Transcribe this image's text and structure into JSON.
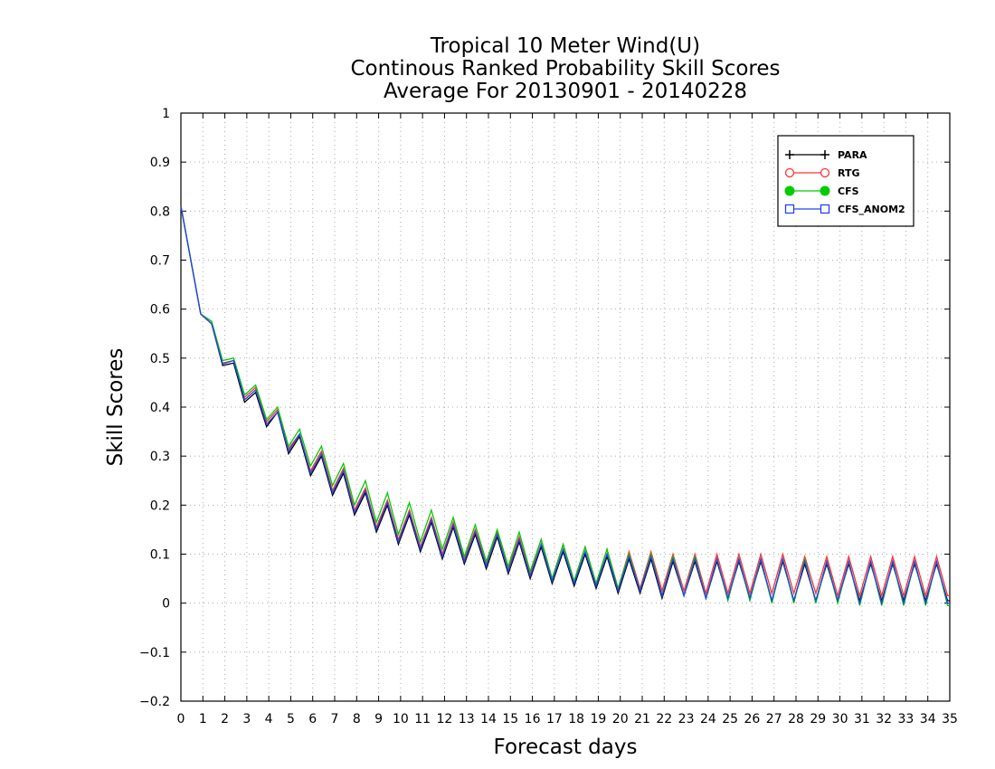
{
  "chart_data": {
    "type": "line",
    "title_lines": [
      "Tropical 10 Meter Wind(U)",
      "Continous Ranked Probability Skill Scores",
      "Average For 20130901 - 20140228"
    ],
    "xlabel": "Forecast days",
    "ylabel": "Skill Scores",
    "xlim": [
      0,
      35
    ],
    "ylim": [
      -0.2,
      1
    ],
    "x_ticks": [
      0,
      1,
      2,
      3,
      4,
      5,
      6,
      7,
      8,
      9,
      10,
      11,
      12,
      13,
      14,
      15,
      16,
      17,
      18,
      19,
      20,
      21,
      22,
      23,
      24,
      25,
      26,
      27,
      28,
      29,
      30,
      31,
      32,
      33,
      34,
      35
    ],
    "y_ticks": [
      -0.2,
      -0.1,
      0,
      0.1,
      0.2,
      0.3,
      0.4,
      0.5,
      0.6,
      0.7,
      0.8,
      0.9,
      1
    ],
    "grid": true,
    "legend_position": "top-right",
    "x": [
      0,
      0.9,
      1.4,
      1.9,
      2.4,
      2.9,
      3.4,
      3.9,
      4.4,
      4.9,
      5.4,
      5.9,
      6.4,
      6.9,
      7.4,
      7.9,
      8.4,
      8.9,
      9.4,
      9.9,
      10.4,
      10.9,
      11.4,
      11.9,
      12.4,
      12.9,
      13.4,
      13.9,
      14.4,
      14.9,
      15.4,
      15.9,
      16.4,
      16.9,
      17.4,
      17.9,
      18.4,
      18.9,
      19.4,
      19.9,
      20.4,
      20.9,
      21.4,
      21.9,
      22.4,
      22.9,
      23.4,
      23.9,
      24.4,
      24.9,
      25.4,
      25.9,
      26.4,
      26.9,
      27.4,
      27.9,
      28.4,
      28.9,
      29.4,
      29.9,
      30.4,
      30.9,
      31.4,
      31.9,
      32.4,
      32.9,
      33.4,
      33.9,
      34.4,
      34.9,
      35
    ],
    "series": [
      {
        "name": "PARA",
        "color": "#000000",
        "marker": "plus",
        "values": [
          0.81,
          0.59,
          0.57,
          0.485,
          0.49,
          0.41,
          0.43,
          0.36,
          0.39,
          0.305,
          0.34,
          0.26,
          0.3,
          0.22,
          0.265,
          0.18,
          0.225,
          0.145,
          0.2,
          0.12,
          0.18,
          0.105,
          0.165,
          0.09,
          0.155,
          0.08,
          0.14,
          0.07,
          0.135,
          0.06,
          0.125,
          0.05,
          0.115,
          0.04,
          0.105,
          0.035,
          0.1,
          0.03,
          0.095,
          0.02,
          0.09,
          0.02,
          0.09,
          0.01,
          0.085,
          0.015,
          0.085,
          0.01,
          0.085,
          0.01,
          0.085,
          0.01,
          0.085,
          0.005,
          0.085,
          0.005,
          0.08,
          0.005,
          0.08,
          0.005,
          0.08,
          0.005,
          0.08,
          0.005,
          0.08,
          0.005,
          0.08,
          0.005,
          0.08,
          0.005,
          0.005
        ]
      },
      {
        "name": "RTG",
        "color": "#ff3333",
        "marker": "open-circle",
        "values": [
          0.81,
          0.59,
          0.57,
          0.49,
          0.495,
          0.42,
          0.44,
          0.37,
          0.395,
          0.315,
          0.345,
          0.27,
          0.31,
          0.23,
          0.275,
          0.19,
          0.235,
          0.155,
          0.21,
          0.13,
          0.19,
          0.115,
          0.175,
          0.1,
          0.165,
          0.09,
          0.15,
          0.08,
          0.145,
          0.07,
          0.135,
          0.06,
          0.13,
          0.05,
          0.12,
          0.045,
          0.115,
          0.04,
          0.11,
          0.03,
          0.105,
          0.03,
          0.105,
          0.025,
          0.1,
          0.025,
          0.1,
          0.02,
          0.1,
          0.02,
          0.1,
          0.02,
          0.1,
          0.02,
          0.1,
          0.02,
          0.095,
          0.02,
          0.095,
          0.015,
          0.095,
          0.015,
          0.095,
          0.015,
          0.095,
          0.015,
          0.095,
          0.015,
          0.095,
          0.015,
          0.015
        ]
      },
      {
        "name": "CFS",
        "color": "#00cc00",
        "marker": "filled-circle",
        "values": [
          0.81,
          0.59,
          0.575,
          0.495,
          0.5,
          0.425,
          0.445,
          0.375,
          0.4,
          0.32,
          0.355,
          0.28,
          0.32,
          0.24,
          0.285,
          0.2,
          0.25,
          0.165,
          0.225,
          0.14,
          0.205,
          0.125,
          0.19,
          0.11,
          0.175,
          0.095,
          0.16,
          0.085,
          0.15,
          0.075,
          0.145,
          0.065,
          0.13,
          0.05,
          0.12,
          0.045,
          0.115,
          0.04,
          0.11,
          0.03,
          0.1,
          0.025,
          0.1,
          0.015,
          0.095,
          0.015,
          0.095,
          0.01,
          0.09,
          0.005,
          0.09,
          0.005,
          0.09,
          0.0,
          0.09,
          0.0,
          0.09,
          0.0,
          0.085,
          0.0,
          0.085,
          -0.005,
          0.085,
          -0.005,
          0.085,
          -0.005,
          0.085,
          -0.005,
          0.085,
          -0.005,
          -0.005
        ]
      },
      {
        "name": "CFS_ANOM2",
        "color": "#2244ee",
        "marker": "open-square",
        "values": [
          0.81,
          0.59,
          0.57,
          0.488,
          0.495,
          0.415,
          0.435,
          0.365,
          0.39,
          0.31,
          0.345,
          0.265,
          0.305,
          0.225,
          0.27,
          0.185,
          0.23,
          0.15,
          0.205,
          0.125,
          0.185,
          0.11,
          0.17,
          0.095,
          0.16,
          0.085,
          0.145,
          0.075,
          0.14,
          0.065,
          0.13,
          0.055,
          0.12,
          0.045,
          0.11,
          0.04,
          0.105,
          0.035,
          0.1,
          0.025,
          0.095,
          0.025,
          0.095,
          0.015,
          0.09,
          0.015,
          0.09,
          0.01,
          0.09,
          0.01,
          0.09,
          0.01,
          0.09,
          0.005,
          0.09,
          0.005,
          0.085,
          0.005,
          0.085,
          0.005,
          0.085,
          0.0,
          0.085,
          0.0,
          0.085,
          0.0,
          0.085,
          0.0,
          0.085,
          0.0,
          0.0
        ]
      }
    ]
  }
}
